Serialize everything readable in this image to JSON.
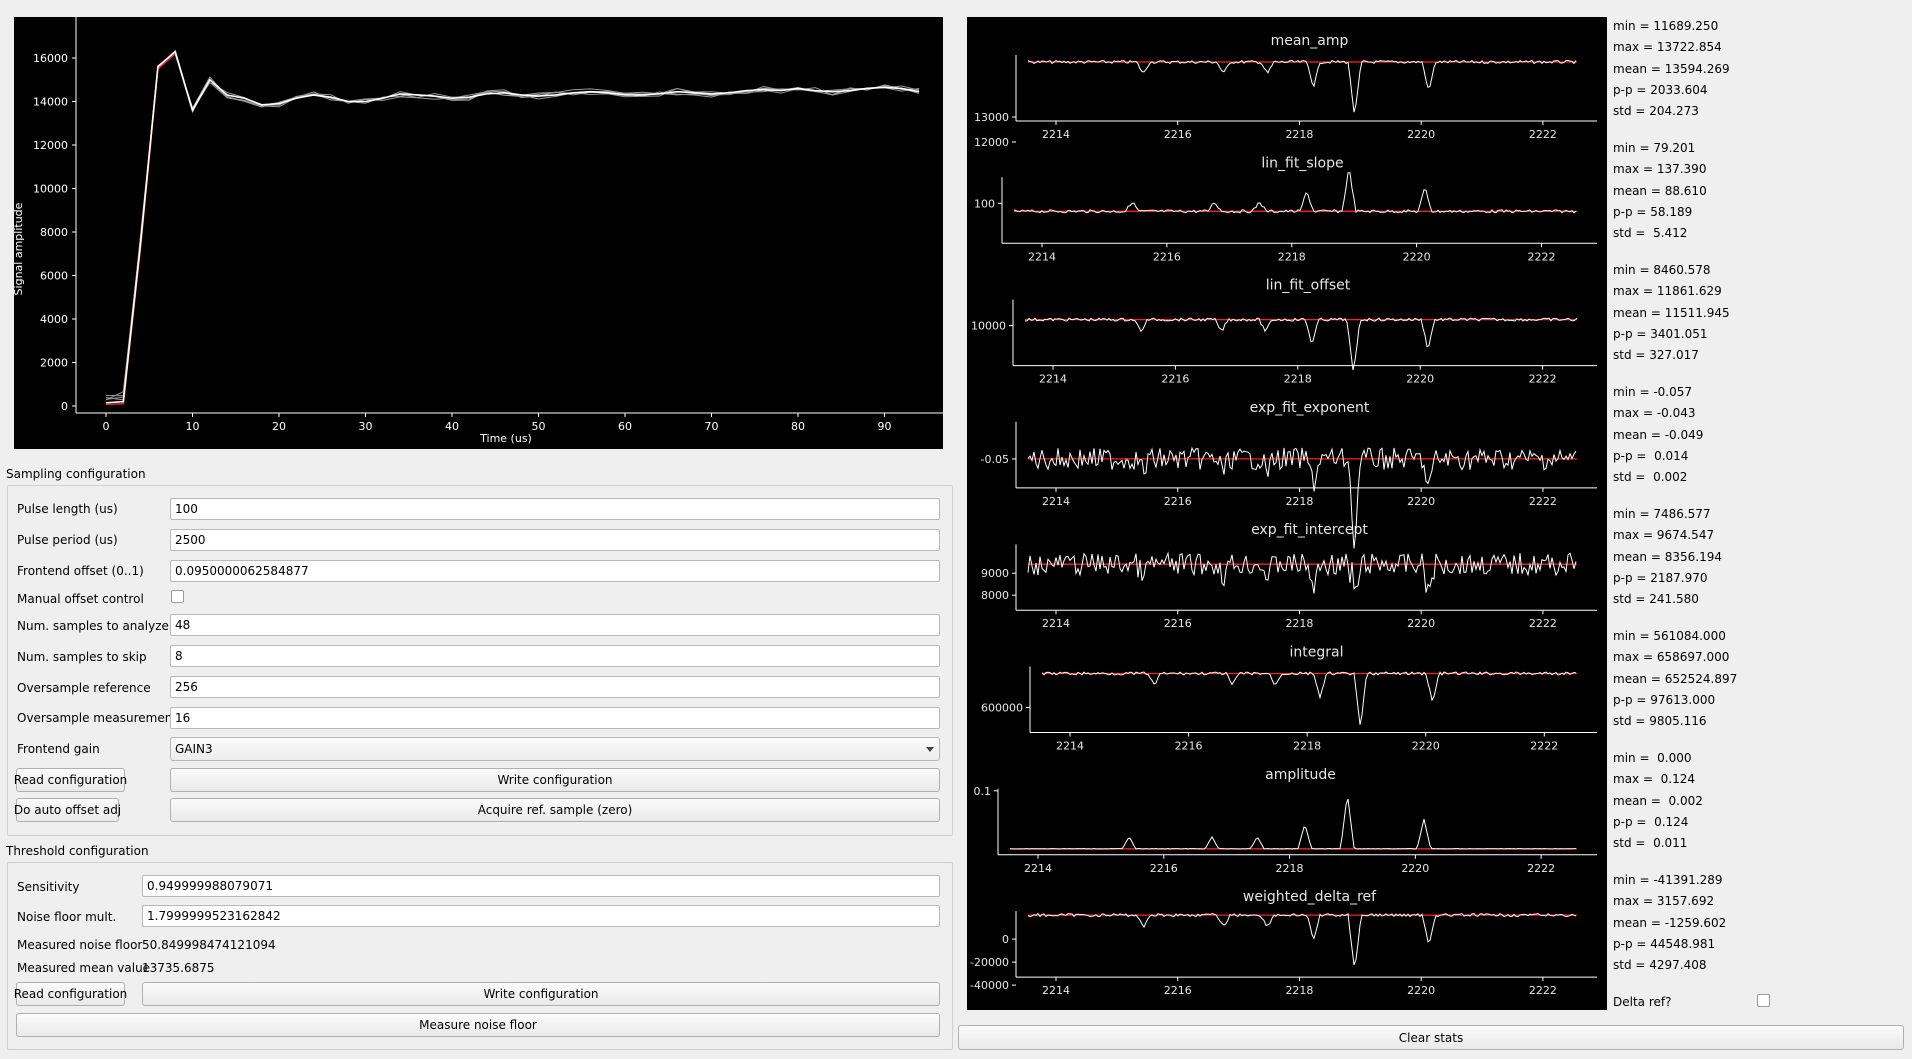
{
  "main_plot": {
    "ylabel": "Signal amplitude",
    "xlabel": "Time (us)",
    "y_ticks": [
      "0",
      "2000",
      "4000",
      "6000",
      "8000",
      "10000",
      "12000",
      "14000",
      "16000"
    ],
    "x_ticks": [
      "0",
      "10",
      "20",
      "30",
      "40",
      "50",
      "60",
      "70",
      "80",
      "90"
    ]
  },
  "sampling": {
    "title": "Sampling configuration",
    "pulse_length_label": "Pulse length (us)",
    "pulse_length_value": "100",
    "pulse_period_label": "Pulse period (us)",
    "pulse_period_value": "2500",
    "frontend_offset_label": "Frontend offset (0..1)",
    "frontend_offset_value": "0.0950000062584877",
    "manual_offset_label": "Manual offset control",
    "num_analyze_label": "Num. samples to analyze",
    "num_analyze_value": "48",
    "num_skip_label": "Num. samples to skip",
    "num_skip_value": "8",
    "oversample_ref_label": "Oversample reference",
    "oversample_ref_value": "256",
    "oversample_meas_label": "Oversample measurements",
    "oversample_meas_value": "16",
    "gain_label": "Frontend gain",
    "gain_value": "GAIN3",
    "read_config": "Read configuration",
    "write_config": "Write configuration",
    "auto_offset": "Do auto offset adj",
    "acquire_ref": "Acquire ref. sample (zero)"
  },
  "threshold": {
    "title": "Threshold configuration",
    "sensitivity_label": "Sensitivity",
    "sensitivity_value": "0.949999988079071",
    "noise_mult_label": "Noise floor mult.",
    "noise_mult_value": "1.7999999523162842",
    "noise_floor_label": "Measured noise floor",
    "noise_floor_value": "50.849998474121094",
    "mean_value_label": "Measured mean value",
    "mean_value_value": "13735.6875",
    "read_config": "Read configuration",
    "write_config": "Write configuration",
    "measure_noise": "Measure noise floor"
  },
  "x_ticks_small": [
    "2214",
    "2216",
    "2218",
    "2220",
    "2222"
  ],
  "plots": [
    {
      "title": "mean_amp",
      "y_ticks": [
        "12000",
        "13000"
      ],
      "stats": {
        "min": "min = 11689.250",
        "max": "max = 13722.854",
        "mean": "mean = 13594.269",
        "pp": "p-p = 2033.604",
        "std": "std = 204.273"
      }
    },
    {
      "title": "lin_fit_slope",
      "y_ticks": [
        "100"
      ],
      "stats": {
        "min": "min = 79.201",
        "max": "max = 137.390",
        "mean": "mean = 88.610",
        "pp": "p-p = 58.189",
        "std": "std =  5.412"
      }
    },
    {
      "title": "lin_fit_offset",
      "y_ticks": [
        "10000"
      ],
      "stats": {
        "min": "min = 8460.578",
        "max": "max = 11861.629",
        "mean": "mean = 11511.945",
        "pp": "p-p = 3401.051",
        "std": "std = 327.017"
      }
    },
    {
      "title": "exp_fit_exponent",
      "y_ticks": [
        "-0.05"
      ],
      "stats": {
        "min": "min = -0.057",
        "max": "max = -0.043",
        "mean": "mean = -0.049",
        "pp": "p-p =  0.014",
        "std": "std =  0.002"
      }
    },
    {
      "title": "exp_fit_intercept",
      "y_ticks": [
        "8000",
        "9000"
      ],
      "stats": {
        "min": "min = 7486.577",
        "max": "max = 9674.547",
        "mean": "mean = 8356.194",
        "pp": "p-p = 2187.970",
        "std": "std = 241.580"
      }
    },
    {
      "title": "integral",
      "y_ticks": [
        "600000"
      ],
      "stats": {
        "min": "min = 561084.000",
        "max": "max = 658697.000",
        "mean": "mean = 652524.897",
        "pp": "p-p = 97613.000",
        "std": "std = 9805.116"
      }
    },
    {
      "title": "amplitude",
      "y_ticks": [
        "0.1"
      ],
      "stats": {
        "min": "min =  0.000",
        "max": "max =  0.124",
        "mean": "mean =  0.002",
        "pp": "p-p =  0.124",
        "std": "std =  0.011"
      }
    },
    {
      "title": "weighted_delta_ref",
      "y_ticks": [
        "-40000",
        "-20000",
        "0"
      ],
      "stats": {
        "min": "min = -41391.289",
        "max": "max = 3157.692",
        "mean": "mean = -1259.602",
        "pp": "p-p = 44548.981",
        "std": "std = 4297.408"
      }
    }
  ],
  "delta_ref_label": "Delta ref?",
  "clear_stats": "Clear stats",
  "colors": {
    "plot_bg": "#000000",
    "trace": "#ffffff",
    "reference": "#ff2020",
    "window_bg": "#efefef"
  }
}
